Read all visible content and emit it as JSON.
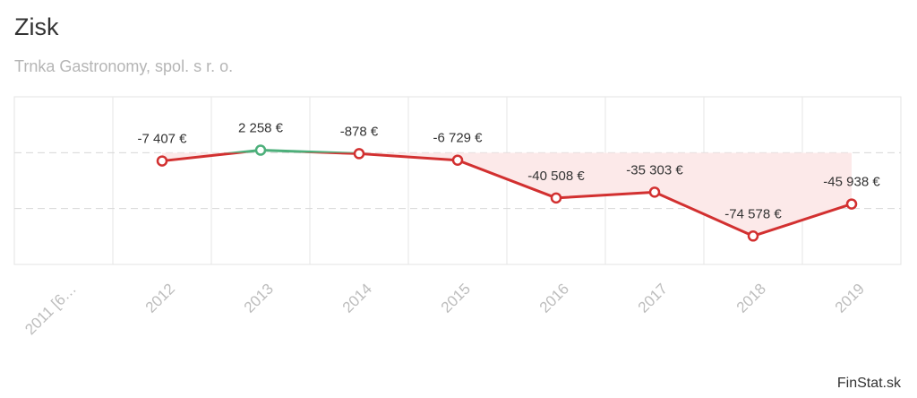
{
  "chart_data": {
    "type": "line",
    "title": "Zisk",
    "subtitle": "Trnka Gastronomy, spol. s r. o.",
    "categories": [
      "2011 [6…",
      "2012",
      "2013",
      "2014",
      "2015",
      "2016",
      "2017",
      "2018",
      "2019"
    ],
    "values": [
      null,
      -7407,
      2258,
      -878,
      -6729,
      -40508,
      -35303,
      -74578,
      -45938
    ],
    "value_labels": [
      null,
      "-7 407 €",
      "2 258 €",
      "-878 €",
      "-6 729 €",
      "-40 508 €",
      "-35 303 €",
      "-74 578 €",
      "-45 938 €"
    ],
    "color_positive": "#4caf7a",
    "color_negative": "#d23030",
    "fill_color": "#fce9e9",
    "ylim": [
      -100000,
      50000
    ],
    "yticks": [
      -50000,
      0
    ],
    "grid": true,
    "source": "FinStat.sk"
  }
}
